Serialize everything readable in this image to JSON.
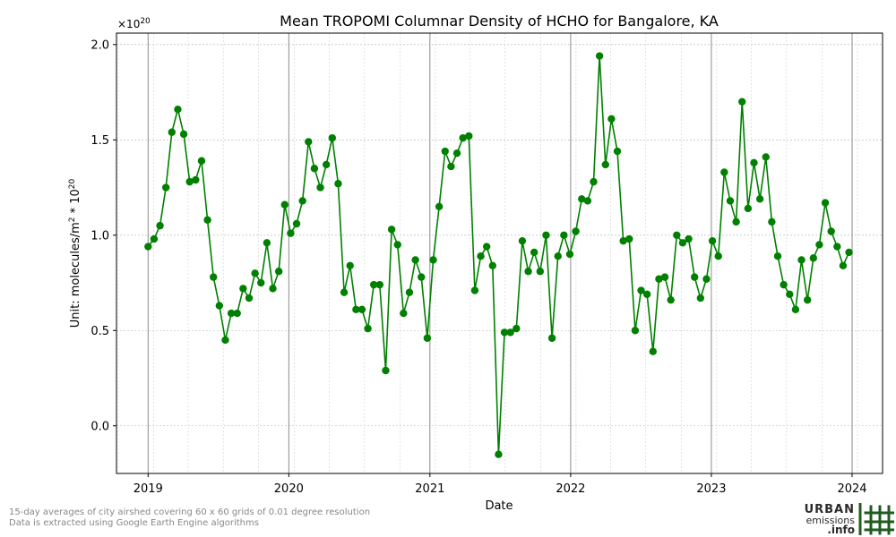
{
  "chart_data": {
    "type": "line",
    "title": "Mean TROPOMI Columnar Density of HCHO for Bangalore, KA",
    "xlabel": "Date",
    "ylabel_main": "Unit: molecules/m",
    "ylabel_exp": "2",
    "ylabel_suffix": " * 10",
    "ylabel_exp2": "20",
    "offset_base": "×10",
    "offset_exp": "20",
    "ylim": [
      -0.25,
      2.06
    ],
    "yticks": [
      0.0,
      0.5,
      1.0,
      1.5,
      2.0
    ],
    "ytick_labels": [
      "0.0",
      "0.5",
      "1.0",
      "1.5",
      "2.0"
    ],
    "xlim": [
      "2018-10-11",
      "2024-03-20"
    ],
    "xticks": [
      "2019-01-01",
      "2020-01-01",
      "2021-01-01",
      "2022-01-01",
      "2023-01-01",
      "2024-01-01"
    ],
    "xtick_labels": [
      "2019",
      "2020",
      "2021",
      "2022",
      "2023",
      "2024"
    ],
    "grid": true,
    "color": "#008000",
    "series": [
      {
        "values": [
          0.94,
          0.98,
          1.05,
          1.25,
          1.54,
          1.66,
          1.53,
          1.28,
          1.29,
          1.39,
          1.08,
          0.78,
          0.63,
          0.45,
          0.59,
          0.59,
          0.72,
          0.67,
          0.8,
          0.75,
          0.96,
          0.72,
          0.81,
          1.16,
          1.01,
          1.06,
          1.18,
          1.49,
          1.35,
          1.25,
          1.37,
          1.51,
          1.27,
          0.7,
          0.84,
          0.61,
          0.61,
          0.51,
          0.74,
          0.74,
          0.29,
          1.03,
          0.95,
          0.59,
          0.7,
          0.87,
          0.78,
          0.46,
          0.87,
          1.15,
          1.44,
          1.36,
          1.43,
          1.51,
          1.52,
          0.71,
          0.89,
          0.94,
          0.84,
          -0.15,
          0.49,
          0.49,
          0.51,
          0.97,
          0.81,
          0.91,
          0.81,
          1.0,
          0.46,
          0.89,
          1.0,
          0.9,
          1.02,
          1.19,
          1.18,
          1.28,
          1.94,
          1.37,
          1.61,
          1.44,
          0.97,
          0.98,
          0.5,
          0.71,
          0.69,
          0.39,
          0.77,
          0.78,
          0.66,
          1.0,
          0.96,
          0.98,
          0.78,
          0.67,
          0.77,
          0.97,
          0.89,
          1.33,
          1.18,
          1.07,
          1.7,
          1.14,
          1.38,
          1.19,
          1.41,
          1.07,
          0.89,
          0.74,
          0.69,
          0.61,
          0.87,
          0.66,
          0.88,
          0.95,
          1.17,
          1.02,
          0.94,
          0.84,
          0.91
        ]
      }
    ],
    "x_start": "2019-01-01",
    "x_end": "2023-12-24"
  },
  "footnote": {
    "line1": "15-day averages of city airshed covering 60 x 60 grids of 0.01 degree resolution",
    "line2": "Data is extracted using Google Earth Engine algorithms"
  },
  "logo": {
    "line1": "URBAN",
    "line2": "emissions",
    "line3": ".info",
    "color": "#1f5c1f"
  }
}
